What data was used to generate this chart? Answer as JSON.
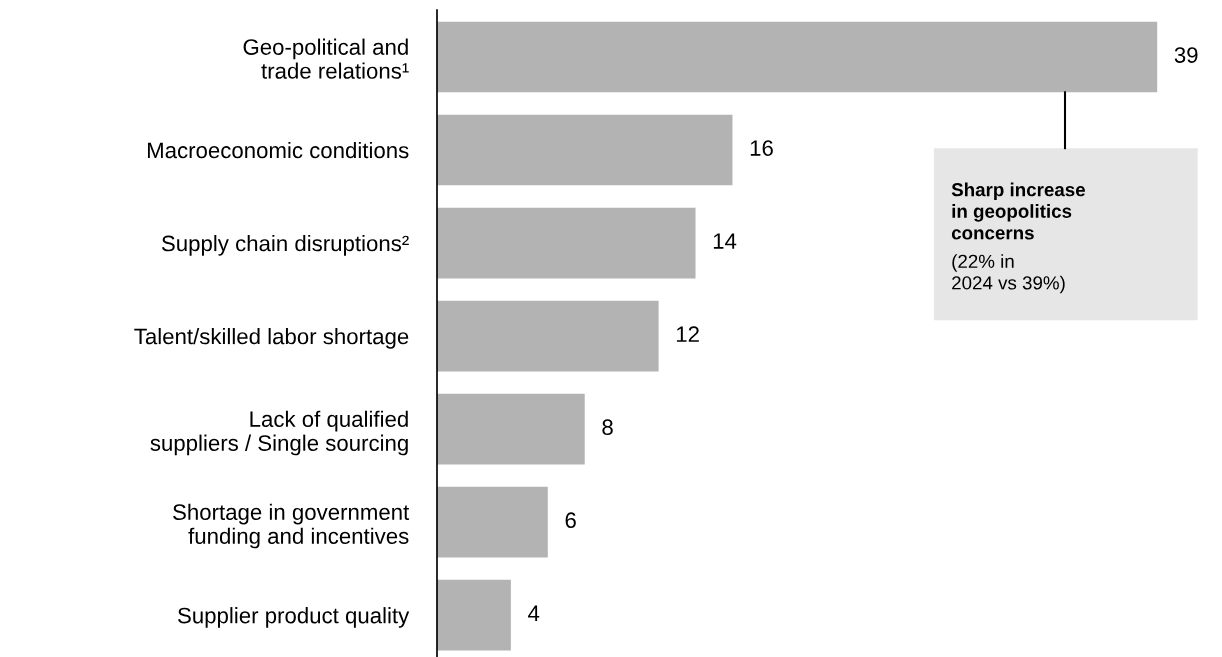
{
  "chart_data": {
    "type": "bar",
    "orientation": "horizontal",
    "categories": [
      "Geo-political and\ntrade relations¹",
      "Macroeconomic conditions",
      "Supply chain disruptions²",
      "Talent/skilled labor shortage",
      "Lack of qualified\nsuppliers / Single sourcing",
      "Shortage in government\nfunding and incentives",
      "Supplier product quality"
    ],
    "values": [
      39,
      16,
      14,
      12,
      8,
      6,
      4
    ],
    "color": "#b3b3b3",
    "tick_labels": "y",
    "grid": false,
    "data_labels": true,
    "annotations": [
      "Sharp increase\nin geopolitics\nconcerns",
      "(22% in\n2024 vs 39%)"
    ]
  }
}
